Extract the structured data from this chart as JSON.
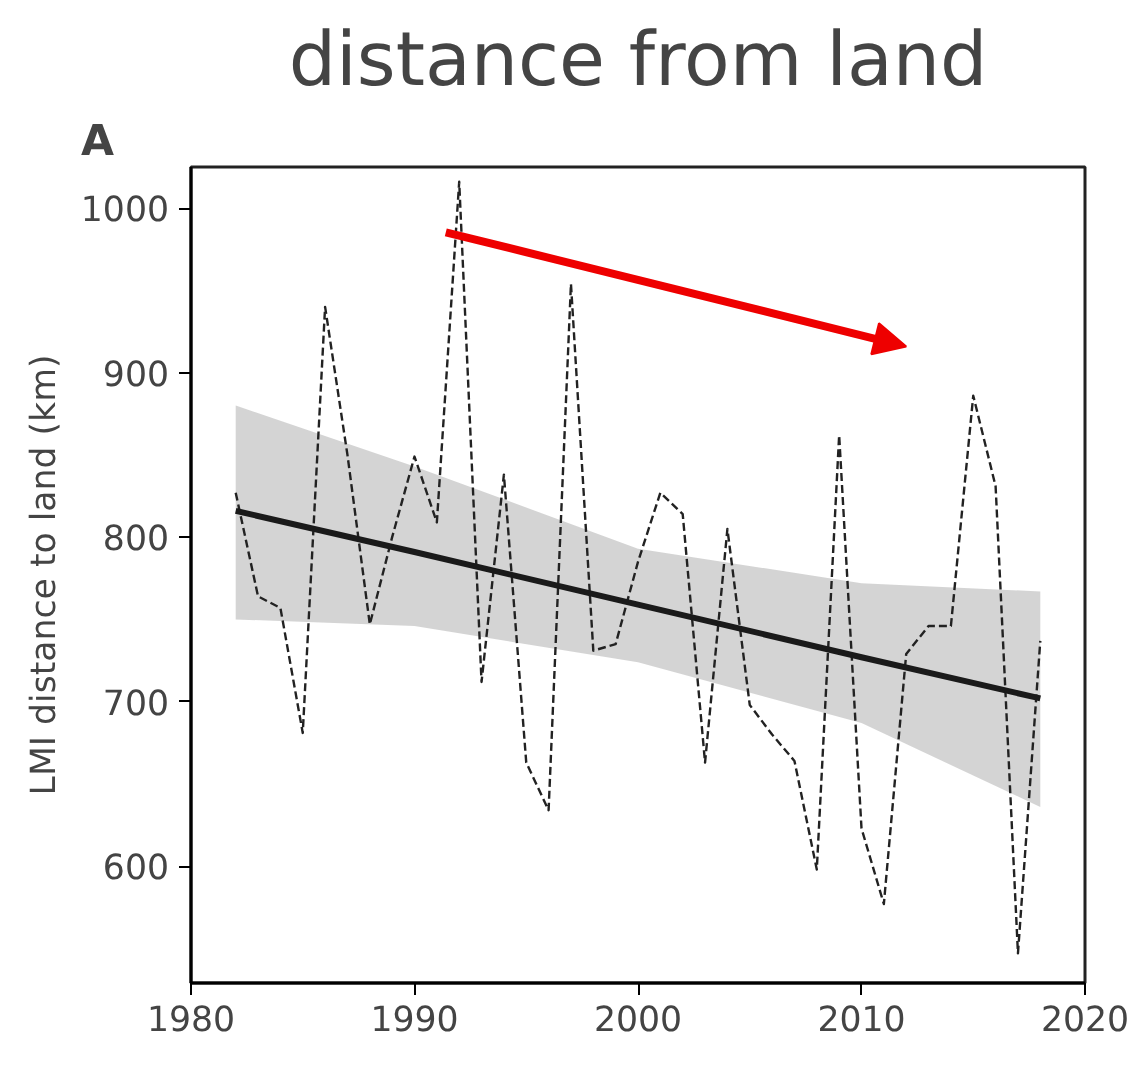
{
  "chart_data": {
    "type": "line",
    "title": "distance from land",
    "ylabel": "LMI distance to land (km)",
    "annotations": [
      "A"
    ],
    "xlim": [
      1980,
      2020
    ],
    "xticks": [
      1980,
      1990,
      2000,
      2010,
      2020
    ],
    "ylim": [
      529,
      1025
    ],
    "yticks": [
      600,
      700,
      800,
      900,
      1000
    ],
    "grid": false,
    "series": [
      {
        "color": "#222222",
        "line_style": "dashed",
        "x": [
          1982,
          1983,
          1984,
          1985,
          1986,
          1987,
          1988,
          1989,
          1990,
          1991,
          1992,
          1993,
          1994,
          1995,
          1996,
          1997,
          1998,
          1999,
          2000,
          2001,
          2002,
          2003,
          2004,
          2005,
          2006,
          2007,
          2008,
          2009,
          2010,
          2011,
          2012,
          2013,
          2014,
          2015,
          2016,
          2017,
          2018
        ],
        "values": [
          827,
          764,
          757,
          681,
          940,
          850,
          747,
          800,
          849,
          809,
          1016,
          712,
          838,
          663,
          634,
          954,
          731,
          735,
          785,
          827,
          814,
          663,
          805,
          698,
          680,
          664,
          598,
          862,
          623,
          577,
          729,
          746,
          746,
          886,
          831,
          547,
          737
        ]
      },
      {
        "color": "#1a1a1a",
        "line_style": "solid",
        "x": [
          1982,
          1990,
          2000,
          2010,
          2018
        ],
        "values": [
          816,
          791,
          759,
          727,
          702
        ],
        "lower": [
          750,
          746,
          724,
          687,
          636
        ],
        "upper": [
          880,
          843,
          793,
          772,
          767
        ]
      }
    ]
  }
}
